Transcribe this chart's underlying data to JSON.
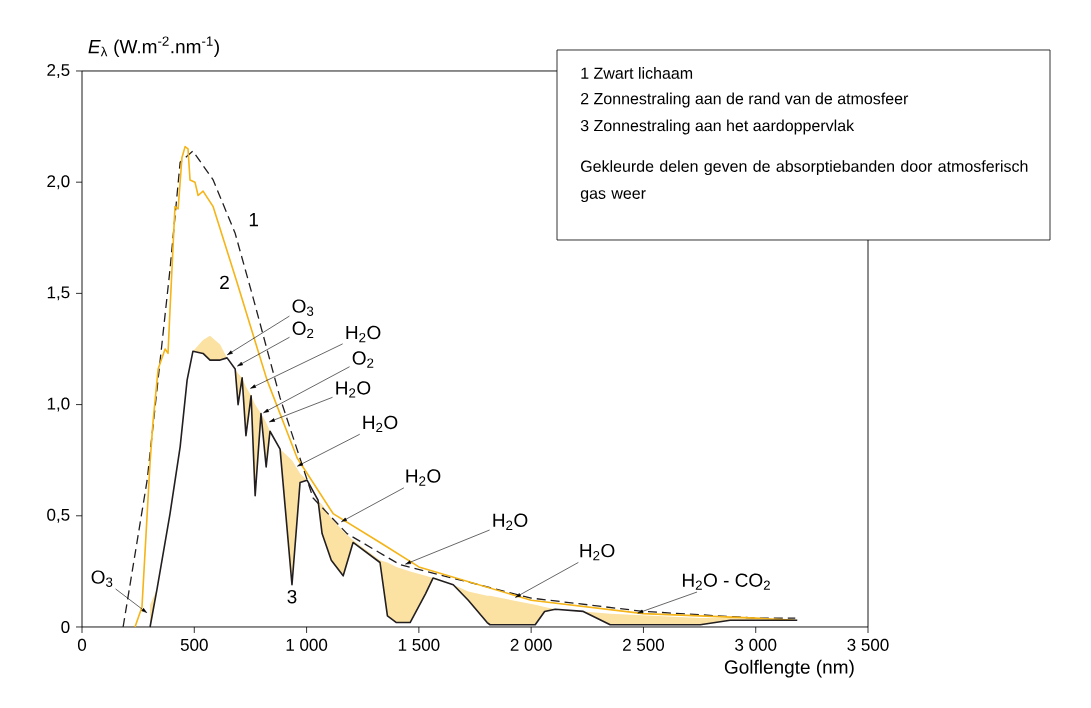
{
  "chart_data": {
    "type": "line",
    "xlabel": "Golflengte (nm)",
    "ylabel": "*E*$_{λ}$ (W.m$^{-2}$.nm$^{-1}$)",
    "xlim": [
      0,
      3500
    ],
    "ylim": [
      0,
      2.5
    ],
    "xticks": [
      0,
      500,
      {
        "value": 1000,
        "label": "1 000"
      },
      {
        "value": 1500,
        "label": "1 500"
      },
      {
        "value": 2000,
        "label": "2 000"
      },
      {
        "value": 2500,
        "label": "2 500"
      },
      {
        "value": 3000,
        "label": "3 000"
      },
      {
        "value": 3500,
        "label": "3 500"
      }
    ],
    "yticks": [
      0,
      {
        "value": 0.5,
        "label": "0,5"
      },
      {
        "value": 1.0,
        "label": "1,0"
      },
      {
        "value": 1.5,
        "label": "1,5"
      },
      {
        "value": 2.0,
        "label": "2,0"
      },
      {
        "value": 2.5,
        "label": "2,5"
      }
    ],
    "series": [
      {
        "name": "1",
        "color": "#231f20",
        "line_style": "dashed",
        "x": [
          183,
          290,
          347,
          392,
          437,
          494,
          584,
          682,
          762,
          882,
          1029,
          1180,
          1416,
          2000,
          2500,
          3000,
          3176
        ],
        "values": [
          0,
          0.66,
          1.19,
          1.61,
          2.09,
          2.14,
          2.01,
          1.77,
          1.48,
          1.03,
          0.58,
          0.42,
          0.28,
          0.13,
          0.07,
          0.04,
          0.04
        ]
      },
      {
        "name": "2",
        "color": "#f5b417",
        "line_style": "solid",
        "x": [
          236,
          267,
          303,
          316,
          339,
          370,
          383,
          392,
          414,
          428,
          445,
          459,
          472,
          481,
          503,
          517,
          539,
          584,
          690,
          824,
          958,
          1118,
          1327,
          1500,
          2000,
          2500,
          3000,
          3176
        ],
        "values": [
          0,
          0.09,
          0.74,
          0.92,
          1.16,
          1.25,
          1.23,
          1.43,
          1.89,
          1.88,
          2.11,
          2.16,
          2.15,
          2.01,
          2.0,
          1.94,
          1.96,
          1.89,
          1.55,
          1.11,
          0.76,
          0.51,
          0.38,
          0.27,
          0.12,
          0.06,
          0.04,
          0.03
        ]
      },
      {
        "name": "3",
        "color": "#231f20",
        "line_style": "solid",
        "x": [
          303,
          334,
          392,
          437,
          468,
          494,
          539,
          570,
          615,
          646,
          682,
          695,
          713,
          730,
          753,
          771,
          797,
          820,
          837,
          882,
          935,
          971,
          1002,
          1051,
          1069,
          1110,
          1163,
          1207,
          1327,
          1360,
          1400,
          1461,
          1530,
          1563,
          1653,
          1720,
          1804,
          1817,
          2018,
          2060,
          2107,
          2232,
          2352,
          2753,
          2886,
          3185
        ],
        "values": [
          0,
          0.17,
          0.51,
          0.81,
          1.11,
          1.24,
          1.23,
          1.2,
          1.2,
          1.21,
          1.16,
          1.0,
          1.12,
          0.86,
          1.04,
          0.59,
          0.96,
          0.72,
          0.88,
          0.8,
          0.19,
          0.65,
          0.66,
          0.57,
          0.42,
          0.3,
          0.23,
          0.38,
          0.29,
          0.05,
          0.02,
          0.02,
          0.15,
          0.22,
          0.19,
          0.12,
          0.02,
          0.01,
          0.01,
          0.07,
          0.08,
          0.07,
          0.01,
          0.01,
          0.03,
          0.03
        ],
        "lower": [
          0,
          0.17,
          0.51,
          0.81,
          1.11,
          1.24,
          1.23,
          1.2,
          1.2,
          1.21,
          1.16,
          1.0,
          1.12,
          0.86,
          1.04,
          0.59,
          0.96,
          0.72,
          0.88,
          0.8,
          0.19,
          0.65,
          0.66,
          0.57,
          0.42,
          0.3,
          0.23,
          0.38,
          0.29,
          0.05,
          0.02,
          0.02,
          0.15,
          0.22,
          0.19,
          0.12,
          0.02,
          0.01,
          0.01,
          0.07,
          0.08,
          0.07,
          0.01,
          0.01,
          0.03,
          0.03
        ],
        "upper": [
          0.1,
          0.17,
          0.51,
          0.81,
          1.11,
          1.24,
          1.29,
          1.31,
          1.27,
          1.21,
          1.16,
          1.14,
          1.12,
          1.08,
          1.04,
          1.0,
          0.96,
          0.92,
          0.88,
          0.8,
          0.75,
          0.69,
          0.66,
          0.57,
          0.55,
          0.49,
          0.43,
          0.39,
          0.3,
          0.29,
          0.27,
          0.25,
          0.23,
          0.22,
          0.19,
          0.16,
          0.14,
          0.14,
          0.1,
          0.09,
          0.08,
          0.07,
          0.06,
          0.04,
          0.04,
          0.03
        ]
      }
    ],
    "annotations": [
      "1 Zwart lichaam",
      "2 Zonnestraling aan de rand van de atmosfeer",
      "3 Zonnestraling aan het aardoppervlak",
      "Gekleurde delen geven de absorptiebanden door atmosferisch gas weer",
      {
        "text": "O$_{3}$",
        "x": 641,
        "y": 1.22
      },
      {
        "text": "O$_{2}$",
        "x": 686,
        "y": 1.17
      },
      {
        "text": "H$_{2}$O",
        "x": 744,
        "y": 1.07
      },
      {
        "text": "O$_{2}$",
        "x": 802,
        "y": 0.96
      },
      {
        "text": "H$_{2}$O",
        "x": 828,
        "y": 0.92
      },
      {
        "text": "H$_{2}$O",
        "x": 953,
        "y": 0.72
      },
      {
        "text": "H$_{2}$O",
        "x": 1149,
        "y": 0.47
      },
      {
        "text": "H$_{2}$O",
        "x": 1434,
        "y": 0.28
      },
      {
        "text": "H$_{2}$O",
        "x": 1924,
        "y": 0.13
      },
      {
        "text": "H$_{2}$O - CO$_{2}$",
        "x": 2468,
        "y": 0.06
      },
      {
        "text": "O$_{3}$",
        "x": 294,
        "y": 0.06
      }
    ]
  }
}
